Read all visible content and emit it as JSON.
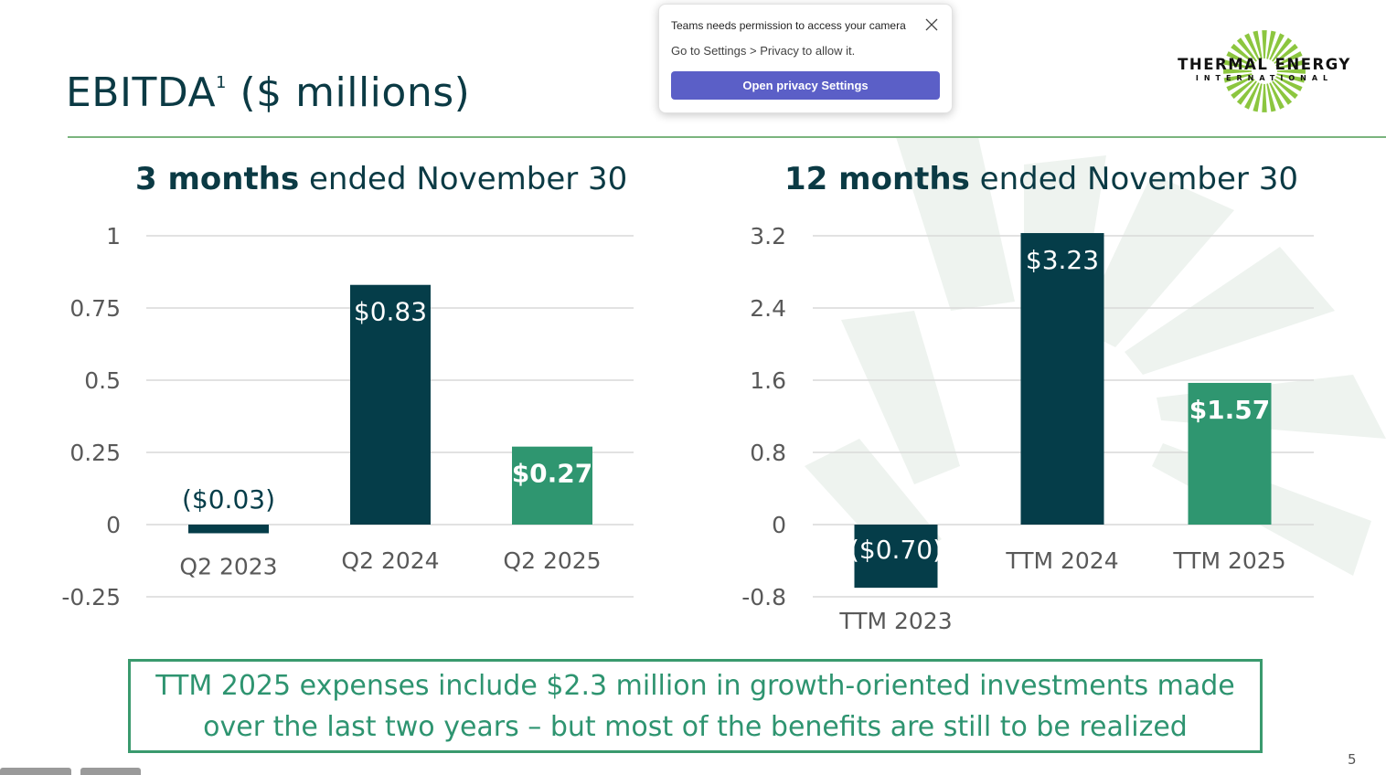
{
  "slide": {
    "title_main": "EBITDA",
    "title_superscript": "1",
    "title_rest": "($ millions)",
    "page_number": "5"
  },
  "logo": {
    "name": "THERMAL ENERGY",
    "sub": "INTERNATIONAL"
  },
  "notification": {
    "title": "Teams needs permission to access your camera",
    "body": "Go to Settings > Privacy to allow it.",
    "button_label": "Open privacy Settings"
  },
  "callout": {
    "line1": "TTM 2025 expenses include $2.3 million in growth-oriented investments made",
    "line2": "over the last two years – but most of the benefits are still to be realized"
  },
  "colors": {
    "dark_teal": "#053d49",
    "green": "#2f9670",
    "rule": "#7ab47e",
    "callout": "#2e9470"
  },
  "chart_data": [
    {
      "type": "bar",
      "title_bold": "3 months",
      "title_rest": "ended November 30",
      "categories": [
        "Q2 2023",
        "Q2 2024",
        "Q2 2025"
      ],
      "values": [
        -0.03,
        0.83,
        0.27
      ],
      "data_labels": [
        "($0.03)",
        "$0.83",
        "$0.27"
      ],
      "bar_colors": [
        "#053d49",
        "#053d49",
        "#2f9670"
      ],
      "yticks": [
        1,
        0.75,
        0.5,
        0.25,
        0,
        -0.25
      ],
      "ytick_labels": [
        "1",
        "0.75",
        "0.5",
        "0.25",
        "0",
        "-0.25"
      ],
      "ylim": [
        -0.25,
        1
      ],
      "grid": true,
      "xlabel": "",
      "ylabel": ""
    },
    {
      "type": "bar",
      "title_bold": "12 months",
      "title_rest": "ended November 30",
      "categories": [
        "TTM 2023",
        "TTM 2024",
        "TTM 2025"
      ],
      "values": [
        -0.7,
        3.23,
        1.57
      ],
      "data_labels": [
        "($0.70)",
        "$3.23",
        "$1.57"
      ],
      "bar_colors": [
        "#053d49",
        "#053d49",
        "#2f9670"
      ],
      "yticks": [
        3.2,
        2.4,
        1.6,
        0.8,
        0,
        -0.8
      ],
      "ytick_labels": [
        "3.2",
        "2.4",
        "1.6",
        "0.8",
        "0",
        "-0.8"
      ],
      "ylim": [
        -0.8,
        3.2
      ],
      "grid": true,
      "xlabel": "",
      "ylabel": ""
    }
  ]
}
